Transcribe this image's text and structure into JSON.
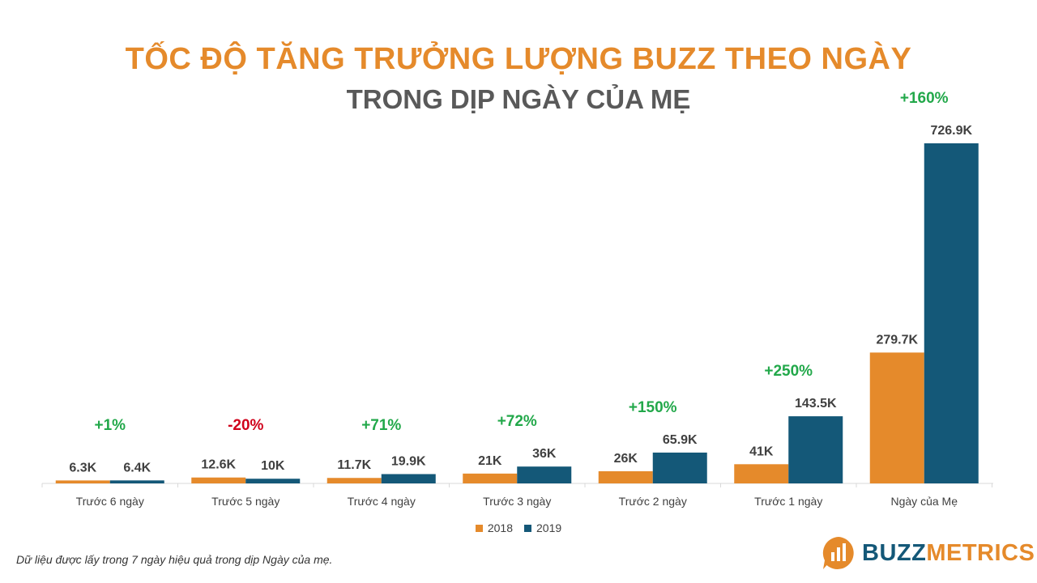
{
  "colors": {
    "title": "#E58A2B",
    "subtitle": "#595959",
    "series_2018": "#E58A2B",
    "series_2019": "#145878",
    "positive": "#22A84A",
    "negative": "#D0021B",
    "label": "#404040",
    "axis": "#d9d9d9"
  },
  "header": {
    "title": "TỐC ĐỘ TĂNG TRƯỞNG LƯỢNG BUZZ THEO NGÀY",
    "subtitle": "TRONG DỊP NGÀY CỦA MẸ"
  },
  "chart_data": {
    "type": "bar",
    "title": "TỐC ĐỘ TĂNG TRƯỞNG LƯỢNG BUZZ THEO NGÀY",
    "subtitle": "TRONG DỊP NGÀY CỦA MẸ",
    "categories": [
      "Trước 6 ngày",
      "Trước 5 ngày",
      "Trước 4 ngày",
      "Trước 3 ngày",
      "Trước 2 ngày",
      "Trước 1 ngày",
      "Ngày của Mẹ"
    ],
    "series": [
      {
        "name": "2018",
        "values": [
          6.3,
          12.6,
          11.7,
          21,
          26,
          41,
          279.7
        ],
        "labels": [
          "6.3K",
          "12.6K",
          "11.7K",
          "21K",
          "26K",
          "41K",
          "279.7K"
        ]
      },
      {
        "name": "2019",
        "values": [
          6.4,
          10,
          19.9,
          36,
          65.9,
          143.5,
          726.9
        ],
        "labels": [
          "6.4K",
          "10K",
          "19.9K",
          "36K",
          "65.9K",
          "143.5K",
          "726.9K"
        ]
      }
    ],
    "growth": [
      "+1%",
      "-20%",
      "+71%",
      "+72%",
      "+150%",
      "+250%",
      "+160%"
    ],
    "unit": "K",
    "ylim": [
      0,
      726.9
    ],
    "grid": false,
    "legend": "bottom-center"
  },
  "legend": {
    "items": [
      "2018",
      "2019"
    ]
  },
  "footnote": "Dữ liệu được lấy trong 7 ngày hiệu quả trong dịp Ngày của mẹ.",
  "logo": {
    "part1": "BUZZ",
    "part2": "METRICS",
    "icon": "buzz-bars-icon"
  }
}
